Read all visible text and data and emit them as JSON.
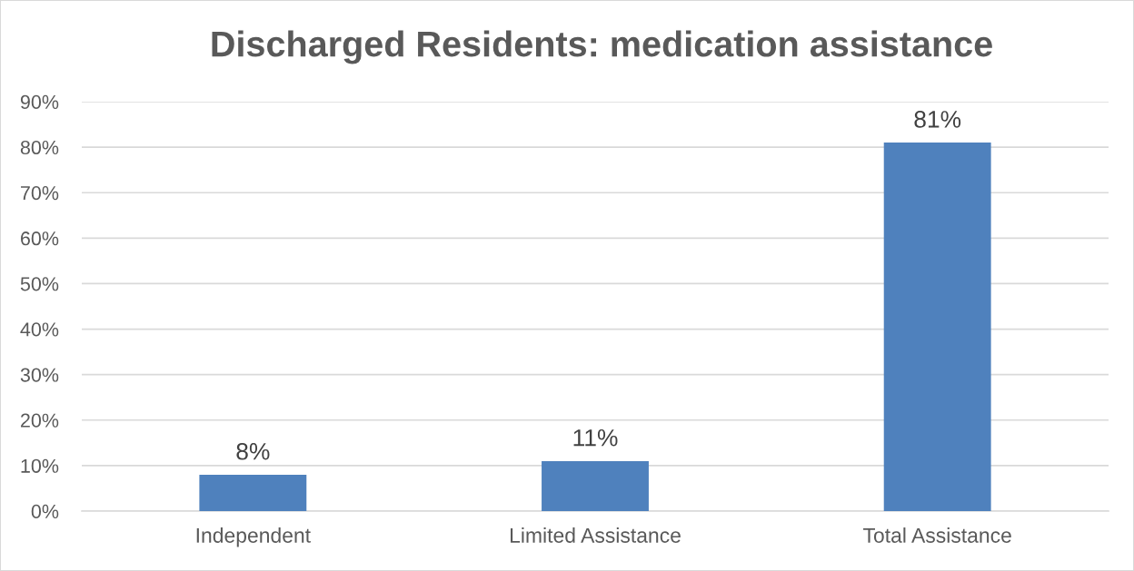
{
  "chart_data": {
    "type": "bar",
    "title": "Discharged Residents: medication assistance",
    "categories": [
      "Independent",
      "Limited Assistance",
      "Total Assistance"
    ],
    "values": [
      8,
      11,
      81
    ],
    "color": "#4f81bd",
    "value_labels": [
      "8%",
      "11%",
      "81%"
    ],
    "ylim": [
      0,
      90
    ],
    "yticks": [
      {
        "value": 0,
        "label": "0%"
      },
      {
        "value": 10,
        "label": "10%"
      },
      {
        "value": 20,
        "label": "20%"
      },
      {
        "value": 30,
        "label": "30%"
      },
      {
        "value": 40,
        "label": "40%"
      },
      {
        "value": 50,
        "label": "50%"
      },
      {
        "value": 60,
        "label": "60%"
      },
      {
        "value": 70,
        "label": "70%"
      },
      {
        "value": 80,
        "label": "80%"
      },
      {
        "value": 90,
        "label": "90%"
      }
    ],
    "grid": "y"
  }
}
